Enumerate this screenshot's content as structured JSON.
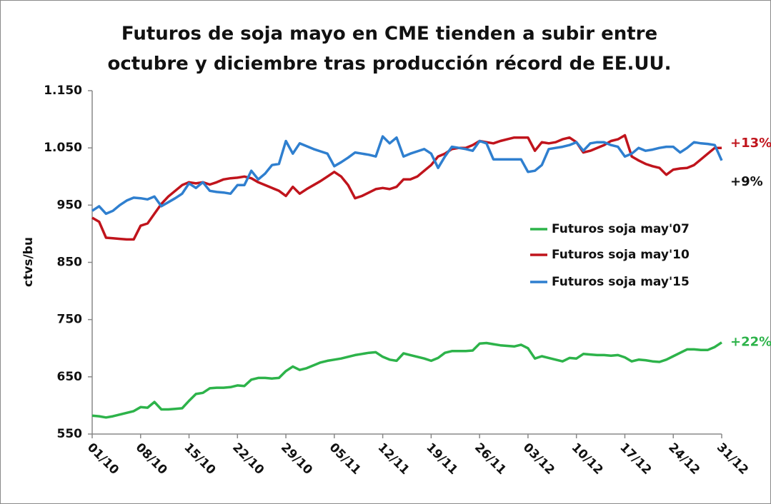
{
  "chart_data": {
    "type": "line",
    "title": [
      "Futuros de soja mayo en CME tienden a subir entre",
      "octubre y diciembre tras producción récord de EE.UU."
    ],
    "ylabel": "ctvs/bu",
    "categories": [
      "01/10",
      null,
      null,
      null,
      null,
      null,
      null,
      "08/10",
      null,
      null,
      null,
      null,
      null,
      null,
      "15/10",
      null,
      null,
      null,
      null,
      null,
      null,
      "22/10",
      null,
      null,
      null,
      null,
      null,
      null,
      "29/10",
      null,
      null,
      null,
      null,
      null,
      null,
      "05/11",
      null,
      null,
      null,
      null,
      null,
      null,
      "12/11",
      null,
      null,
      null,
      null,
      null,
      null,
      "19/11",
      null,
      null,
      null,
      null,
      null,
      null,
      "26/11",
      null,
      null,
      null,
      null,
      null,
      null,
      "03/12",
      null,
      null,
      null,
      null,
      null,
      null,
      "10/12",
      null,
      null,
      null,
      null,
      null,
      null,
      "17/12",
      null,
      null,
      null,
      null,
      null,
      null,
      "24/12",
      null,
      null,
      null,
      null,
      null,
      null,
      "31/12"
    ],
    "series": [
      {
        "name": "Futuros soja may'07",
        "color": "#2db34a",
        "values": [
          582,
          581,
          579,
          581,
          584,
          587,
          590,
          597,
          596,
          606,
          593,
          593,
          594,
          595,
          608,
          620,
          622,
          630,
          631,
          631,
          632,
          635,
          634,
          645,
          648,
          648,
          647,
          648,
          660,
          668,
          662,
          665,
          670,
          675,
          678,
          680,
          682,
          685,
          688,
          690,
          692,
          693,
          685,
          680,
          678,
          691,
          688,
          685,
          682,
          678,
          683,
          692,
          695,
          695,
          695,
          696,
          708,
          709,
          707,
          705,
          704,
          703,
          706,
          700,
          682,
          686,
          683,
          680,
          677,
          683,
          682,
          690,
          689,
          688,
          688,
          687,
          688,
          684,
          677,
          680,
          679,
          677,
          676,
          680,
          686,
          692,
          698,
          698,
          697,
          697,
          702,
          710
        ]
      },
      {
        "name": "Futuros soja may'10",
        "color": "#c0141c",
        "values": [
          928,
          921,
          893,
          892,
          891,
          890,
          890,
          914,
          918,
          935,
          952,
          965,
          975,
          985,
          990,
          988,
          990,
          986,
          990,
          995,
          997,
          998,
          1000,
          997,
          990,
          985,
          980,
          975,
          966,
          982,
          970,
          978,
          985,
          992,
          1000,
          1008,
          1000,
          985,
          962,
          966,
          972,
          978,
          980,
          978,
          982,
          995,
          995,
          1000,
          1010,
          1020,
          1035,
          1040,
          1048,
          1050,
          1050,
          1055,
          1062,
          1060,
          1058,
          1062,
          1065,
          1068,
          1068,
          1068,
          1045,
          1060,
          1058,
          1060,
          1065,
          1068,
          1060,
          1042,
          1045,
          1050,
          1055,
          1062,
          1065,
          1072,
          1035,
          1028,
          1022,
          1018,
          1015,
          1003,
          1012,
          1014,
          1015,
          1020,
          1030,
          1040,
          1050,
          1050
        ]
      },
      {
        "name": "Futuros soja may'15",
        "color": "#2f7fcf",
        "values": [
          940,
          948,
          935,
          940,
          950,
          958,
          963,
          962,
          960,
          965,
          948,
          955,
          962,
          970,
          988,
          980,
          990,
          975,
          973,
          972,
          970,
          985,
          985,
          1010,
          995,
          1005,
          1020,
          1022,
          1062,
          1040,
          1058,
          1053,
          1048,
          1044,
          1040,
          1018,
          1025,
          1033,
          1042,
          1040,
          1038,
          1035,
          1070,
          1058,
          1068,
          1035,
          1040,
          1044,
          1048,
          1040,
          1015,
          1035,
          1052,
          1050,
          1048,
          1045,
          1062,
          1058,
          1030,
          1030,
          1030,
          1030,
          1030,
          1008,
          1010,
          1020,
          1048,
          1050,
          1052,
          1055,
          1060,
          1045,
          1058,
          1060,
          1060,
          1055,
          1052,
          1035,
          1040,
          1050,
          1045,
          1047,
          1050,
          1052,
          1052,
          1042,
          1050,
          1060,
          1058,
          1057,
          1055,
          1028
        ]
      }
    ],
    "ylim": [
      550,
      1150
    ],
    "yticks": [
      550,
      650,
      750,
      850,
      950,
      {
        "value": 1050,
        "label": "1.050"
      },
      {
        "value": 1150,
        "label": "1.150"
      }
    ],
    "annotations": [
      {
        "text": "+13%",
        "color": "#c0141c"
      },
      {
        "text": "+9%",
        "color": "#111111"
      },
      {
        "text": "+22%",
        "color": "#2db34a"
      }
    ],
    "legend": "right"
  }
}
